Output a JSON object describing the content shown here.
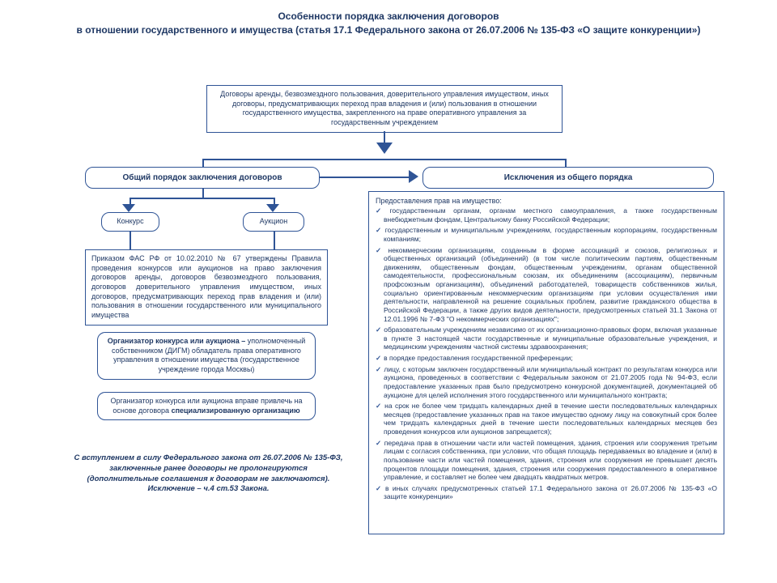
{
  "colors": {
    "border": "#2f5496",
    "text": "#1f3864",
    "bg": "#ffffff"
  },
  "title": "Особенности порядка заключения договоров\nв отношении государственного и имущества (статья 17.1 Федерального закона от 26.07.2006 № 135-ФЗ «О защите конкуренции»)",
  "topBox": "Договоры аренды, безвозмездного пользования, доверительного управления имуществом, иных договоры, предусматривающих переход прав владения и (или) пользования в отношении государственного имущества, закрепленного на праве оперативного управления за государственным учреждением",
  "generalHeading": "Общий порядок заключения договоров",
  "exceptionsHeading": "Исключения из общего порядка",
  "competition": "Конкурс",
  "auction": "Аукцион",
  "rulesBox": "Приказом ФАС РФ от 10.02.2010 № 67 утверждены Правила проведения конкурсов или аукционов на право заключения договоров аренды, договоров безвозмездного пользования, договоров доверительного управления имуществом, иных договоров, предусматривающих переход прав владения и (или) пользования в отношении государственного или муниципального имущества",
  "organizerBox": "Организатор конкурса или аукциона – уполномоченный собственником (ДИГМ) обладатель права оперативного управления в отношении имущества (государственное учреждение города Москвы)",
  "specOrgBox": "Организатор конкурса или аукциона вправе привлечь на основе договора специализированную организацию",
  "specOrgBold": "специализированную организацию",
  "footnote": "С вступлением в силу Федерального закона от 26.07.2006 № 135-ФЗ, заключенные ранее договоры не пролонгируются (дополнительные соглашения к договорам не заключаются). Исключение – ч.4 ст.53 Закона.",
  "exceptionsIntro": "Предоставления прав на имущество:",
  "exceptionsList": [
    "государственным органам, органам местного самоуправления, а также государственным внебюджетным фондам, Центральному банку Российской Федерации;",
    "государственным и муниципальным учреждениям, государственным корпорациям, государственным компаниям;",
    "некоммерческим организациям, созданным в форме ассоциаций и союзов, религиозных и общественных организаций (объединений) (в том числе политическим партиям, общественным движениям, общественным фондам, общественным учреждениям, органам общественной самодеятельности, профессиональным союзам, их объединениям (ассоциациям), первичным профсоюзным организациям), объединений работодателей, товариществ собственников жилья, социально ориентированным некоммерческим организациям при условии осуществления ими деятельности, направленной на решение социальных проблем, развитие гражданского общества в Российской Федерации, а также других видов деятельности, предусмотренных статьей 31.1 Закона от 12.01.1996 № 7-ФЗ \"О некоммерческих организациях\";",
    "образовательным учреждениям независимо от их организационно-правовых форм, включая указанные в пункте 3 настоящей части государственные и муниципальные образовательные учреждения, и медицинским учреждениям частной системы здравоохранения;",
    "в порядке предоставления государственной преференции;",
    "лицу, с которым заключен государственный или муниципальный контракт по результатам конкурса или аукциона, проведенных в соответствии с Федеральным законом от 21.07.2005 года № 94-ФЗ, если предоставление указанных прав было предусмотрено конкурсной документацией, документацией об аукционе для целей исполнения этого государственного или муниципального контракта;",
    "на срок не более чем тридцать календарных дней в течение шести последовательных календарных месяцев (предоставление указанных прав на такое имущество одному лицу на совокупный срок более чем тридцать календарных дней в течение шести последовательных календарных месяцев без проведения конкурсов или аукционов запрещается);",
    "передача прав в отношении части или частей помещения, здания, строения или сооружения третьим лицам с согласия собственника, при условии, что общая площадь передаваемых во владение и (или) в пользование части или частей помещения, здания, строения или сооружения не превышает десять процентов площади помещения, здания, строения или сооружения предоставленного в оперативное управление, и составляет не более чем двадцать квадратных метров.",
    "в иных случаях предусмотренных статьей 17.1 Федерального закона от 26.07.2006 № 135-ФЗ «О защите конкуренции»"
  ]
}
